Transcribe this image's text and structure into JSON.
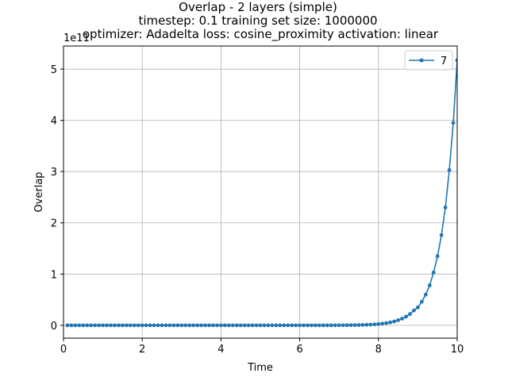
{
  "chart_data": {
    "type": "line",
    "title_lines": [
      "Overlap - 2 layers (simple)",
      "timestep: 0.1 training set size: 1000000",
      "optimizer: Adadelta loss: cosine_proximity activation: linear"
    ],
    "xlabel": "Time",
    "ylabel": "Overlap",
    "y_offset_label": "1e11",
    "xlim": [
      0,
      10
    ],
    "ylim": [
      -0.25,
      5.45
    ],
    "x_ticks": [
      0,
      2,
      4,
      6,
      8,
      10
    ],
    "x_tick_labels": [
      "0",
      "2",
      "4",
      "6",
      "8",
      "10"
    ],
    "y_ticks": [
      0,
      1,
      2,
      3,
      4,
      5
    ],
    "y_tick_labels": [
      "0",
      "1",
      "2",
      "3",
      "4",
      "5"
    ],
    "grid": true,
    "legend_position": "top-right",
    "series": [
      {
        "name": "7",
        "color": "#1f77b4",
        "x": [
          0.1,
          0.2,
          0.3,
          0.4,
          0.5,
          0.6,
          0.7,
          0.8,
          0.9,
          1.0,
          1.1,
          1.2,
          1.3,
          1.4,
          1.5,
          1.6,
          1.7,
          1.8,
          1.9,
          2.0,
          2.1,
          2.2,
          2.3,
          2.4,
          2.5,
          2.6,
          2.7,
          2.8,
          2.9,
          3.0,
          3.1,
          3.2,
          3.3,
          3.4,
          3.5,
          3.6,
          3.7,
          3.8,
          3.9,
          4.0,
          4.1,
          4.2,
          4.3,
          4.4,
          4.5,
          4.6,
          4.7,
          4.8,
          4.9,
          5.0,
          5.1,
          5.2,
          5.3,
          5.4,
          5.5,
          5.6,
          5.7,
          5.8,
          5.9,
          6.0,
          6.1,
          6.2,
          6.3,
          6.4,
          6.5,
          6.6,
          6.7,
          6.8,
          6.9,
          7.0,
          7.1,
          7.2,
          7.3,
          7.4,
          7.5,
          7.6,
          7.7,
          7.8,
          7.9,
          8.0,
          8.1,
          8.2,
          8.3,
          8.4,
          8.5,
          8.6,
          8.7,
          8.8,
          8.9,
          9.0,
          9.1,
          9.2,
          9.3,
          9.4,
          9.5,
          9.6,
          9.7,
          9.8,
          9.9,
          10.0
        ],
        "y": [
          0,
          0,
          0,
          0,
          0,
          0,
          0,
          0,
          0,
          0,
          0,
          0,
          0,
          0,
          0,
          0,
          0,
          0,
          0,
          0,
          0,
          0,
          0,
          0,
          0,
          0,
          0,
          0,
          0,
          0,
          0,
          0,
          0,
          0,
          0,
          0,
          0,
          0,
          0,
          0,
          0,
          0,
          0,
          0,
          0,
          0,
          0,
          0,
          0,
          0,
          0,
          0,
          0,
          0,
          0,
          0,
          0,
          0,
          0,
          0,
          0,
          0,
          0,
          0,
          0,
          0,
          0.001,
          0.001,
          0.001,
          0.002,
          0.002,
          0.003,
          0.004,
          0.005,
          0.006,
          0.008,
          0.011,
          0.014,
          0.019,
          0.025,
          0.033,
          0.043,
          0.057,
          0.075,
          0.1,
          0.13,
          0.17,
          0.22,
          0.29,
          0.35,
          0.46,
          0.6,
          0.78,
          1.03,
          1.35,
          1.76,
          2.3,
          3.03,
          3.95,
          5.17
        ]
      }
    ]
  }
}
